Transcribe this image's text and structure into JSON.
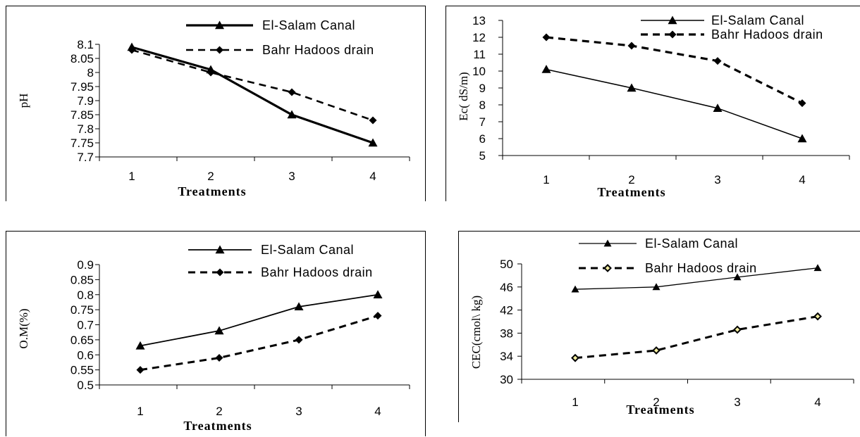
{
  "chart_data": [
    {
      "type": "line",
      "xlabel": "Treatments",
      "ylabel": "pH",
      "x": [
        "1",
        "2",
        "3",
        "4"
      ],
      "ylim": [
        7.7,
        8.1
      ],
      "yticks": [
        "7.7",
        "7.75",
        "7.8",
        "7.85",
        "7.9",
        "7.95",
        "8",
        "8.05",
        "8.1"
      ],
      "legend_position": "top-right",
      "grid": false,
      "series": [
        {
          "name": "El-Salam Canal",
          "values": [
            8.09,
            8.01,
            7.85,
            7.75
          ],
          "marker": "triangle",
          "style": "solid"
        },
        {
          "name": "Bahr Hadoos drain",
          "values": [
            8.08,
            8.0,
            7.93,
            7.83
          ],
          "marker": "diamond",
          "style": "dashed"
        }
      ]
    },
    {
      "type": "line",
      "xlabel": "Treatments",
      "ylabel": "Ec( dS/m)",
      "x": [
        "1",
        "2",
        "3",
        "4"
      ],
      "ylim": [
        5,
        13
      ],
      "yticks": [
        "5",
        "6",
        "7",
        "8",
        "9",
        "10",
        "11",
        "12",
        "13"
      ],
      "legend_position": "top-right",
      "grid": false,
      "series": [
        {
          "name": "El-Salam Canal",
          "values": [
            10.1,
            9.0,
            7.8,
            6.0
          ],
          "marker": "triangle",
          "style": "solid"
        },
        {
          "name": "Bahr Hadoos drain",
          "values": [
            12.0,
            11.5,
            10.6,
            8.1
          ],
          "marker": "diamond",
          "style": "dashed"
        }
      ]
    },
    {
      "type": "line",
      "xlabel": "Treatments",
      "ylabel": "O.M(%)",
      "x": [
        "1",
        "2",
        "3",
        "4"
      ],
      "ylim": [
        0.5,
        0.9
      ],
      "yticks": [
        "0.5",
        "0.55",
        "0.6",
        "0.65",
        "0.7",
        "0.75",
        "0.8",
        "0.85",
        "0.9"
      ],
      "legend_position": "top-right",
      "grid": false,
      "series": [
        {
          "name": "El-Salam Canal",
          "values": [
            0.63,
            0.68,
            0.76,
            0.8
          ],
          "marker": "triangle",
          "style": "solid"
        },
        {
          "name": "Bahr Hadoos drain",
          "values": [
            0.55,
            0.59,
            0.65,
            0.73
          ],
          "marker": "diamond",
          "style": "dashed"
        }
      ]
    },
    {
      "type": "line",
      "xlabel": "Treatments",
      "ylabel": "CEC(cmol\\ kg)",
      "x": [
        "1",
        "2",
        "3",
        "4"
      ],
      "ylim": [
        30,
        50
      ],
      "yticks": [
        "30",
        "34",
        "38",
        "42",
        "46",
        "50"
      ],
      "legend_position": "top",
      "grid": false,
      "series": [
        {
          "name": "El-Salam Canal",
          "values": [
            45.6,
            46.0,
            47.7,
            49.3
          ],
          "marker": "triangle",
          "style": "solid"
        },
        {
          "name": "Bahr Hadoos drain",
          "values": [
            33.7,
            35.0,
            38.6,
            40.9
          ],
          "marker": "diamond-yellow",
          "style": "dashed"
        }
      ]
    }
  ]
}
